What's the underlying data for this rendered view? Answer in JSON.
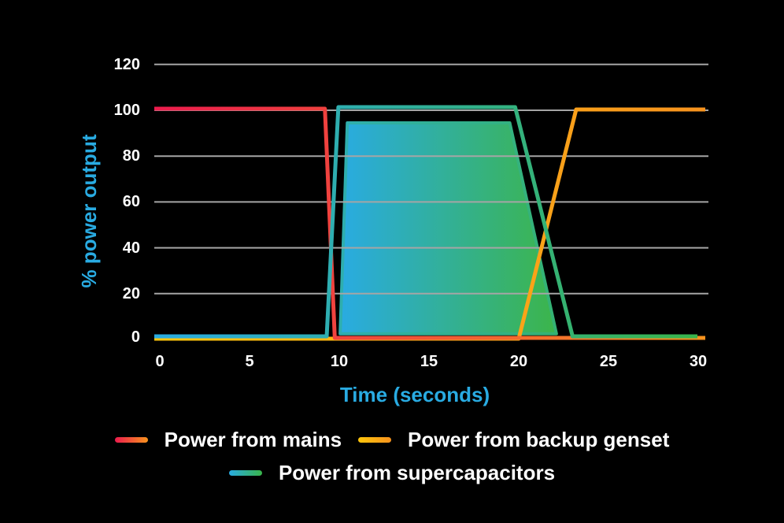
{
  "background_color": "#000000",
  "axes": {
    "x_title": "Time (seconds)",
    "y_title": "% power output",
    "title_color": "#29ABE2",
    "tick_color": "#FFFFFF",
    "grid_color": "#A5A5A5"
  },
  "chart_data": {
    "type": "line",
    "xlabel": "Time (seconds)",
    "ylabel": "% power output",
    "xlim": [
      0,
      30
    ],
    "ylim": [
      0,
      120
    ],
    "x_ticks": [
      0,
      5,
      10,
      15,
      20,
      25,
      30
    ],
    "y_ticks": [
      0,
      20,
      40,
      60,
      80,
      100,
      120
    ],
    "grid": "horizontal-only",
    "legend_position": "bottom",
    "series": [
      {
        "name": "Power from mains",
        "color_start": "#EC1C4D",
        "color_end": "#F7931E",
        "points": [
          [
            0,
            100
          ],
          [
            9.2,
            100
          ],
          [
            9.75,
            0
          ],
          [
            30,
            0
          ]
        ]
      },
      {
        "name": "Power from backup genset",
        "color_start": "#FFC60B",
        "color_end": "#F7931E",
        "points": [
          [
            0,
            0
          ],
          [
            20,
            0
          ],
          [
            23.2,
            100
          ],
          [
            30,
            100
          ]
        ]
      },
      {
        "name": "Power from supercapacitors",
        "color_start": "#29ABE2",
        "color_end": "#39B54A",
        "points": [
          [
            0,
            0
          ],
          [
            9.3,
            0
          ],
          [
            9.95,
            100
          ],
          [
            19.8,
            100
          ],
          [
            23,
            0
          ],
          [
            30,
            0
          ]
        ]
      }
    ],
    "fill_area": {
      "belongs_to": "Power from supercapacitors",
      "color_start": "#29ABE2",
      "color_end": "#3CB54A",
      "points": [
        [
          10.05,
          2.5
        ],
        [
          10.45,
          94.5
        ],
        [
          19.5,
          94.5
        ],
        [
          22.1,
          2.5
        ]
      ]
    },
    "legend_rows": [
      [
        "Power from mains",
        "Power from backup genset"
      ],
      [
        "Power from supercapacitors"
      ]
    ]
  }
}
